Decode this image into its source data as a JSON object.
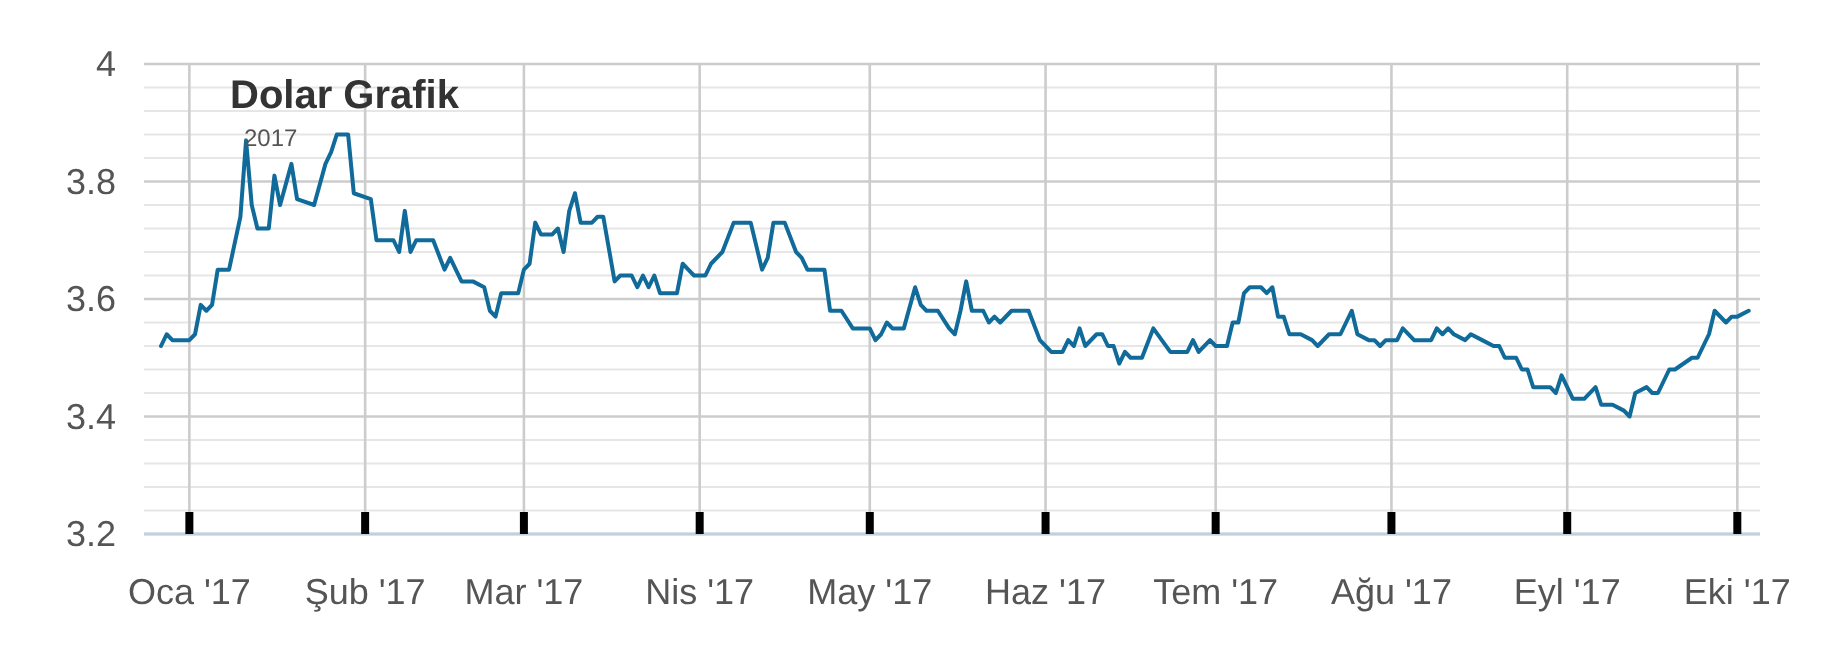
{
  "chart_data": {
    "type": "line",
    "title": "Dolar Grafik",
    "subtitle": "2017",
    "xlim": [
      "2016-12-24",
      "2017-10-05"
    ],
    "xticks": [
      {
        "value": "2017-01-01",
        "label": "Oca '17"
      },
      {
        "value": "2017-02-01",
        "label": "Şub '17"
      },
      {
        "value": "2017-03-01",
        "label": "Mar '17"
      },
      {
        "value": "2017-04-01",
        "label": "Nis '17"
      },
      {
        "value": "2017-05-01",
        "label": "May '17"
      },
      {
        "value": "2017-06-01",
        "label": "Haz '17"
      },
      {
        "value": "2017-07-01",
        "label": "Tem '17"
      },
      {
        "value": "2017-08-01",
        "label": "Ağu '17"
      },
      {
        "value": "2017-09-01",
        "label": "Eyl '17"
      },
      {
        "value": "2017-10-01",
        "label": "Eki '17"
      }
    ],
    "ylim": [
      3.2,
      4
    ],
    "yticks": [
      {
        "value": 3.2,
        "label": "3.2"
      },
      {
        "value": 3.24,
        "label": null
      },
      {
        "value": 3.28,
        "label": null
      },
      {
        "value": 3.32,
        "label": null
      },
      {
        "value": 3.36,
        "label": null
      },
      {
        "value": 3.4,
        "label": "3.4"
      },
      {
        "value": 3.44,
        "label": null
      },
      {
        "value": 3.48,
        "label": null
      },
      {
        "value": 3.52,
        "label": null
      },
      {
        "value": 3.56,
        "label": null
      },
      {
        "value": 3.6,
        "label": "3.6"
      },
      {
        "value": 3.64,
        "label": null
      },
      {
        "value": 3.68,
        "label": null
      },
      {
        "value": 3.72,
        "label": null
      },
      {
        "value": 3.76,
        "label": null
      },
      {
        "value": 3.8,
        "label": "3.8"
      },
      {
        "value": 3.84,
        "label": null
      },
      {
        "value": 3.88,
        "label": null
      },
      {
        "value": 3.92,
        "label": null
      },
      {
        "value": 3.96,
        "label": null
      },
      {
        "value": 4,
        "label": "4"
      }
    ],
    "grid": true,
    "marker": "none",
    "line_style": "solid",
    "x": [
      "2016-12-27",
      "2016-12-28",
      "2016-12-29",
      "2017-01-01",
      "2017-01-02",
      "2017-01-03",
      "2017-01-04",
      "2017-01-05",
      "2017-01-06",
      "2017-01-08",
      "2017-01-10",
      "2017-01-11",
      "2017-01-12",
      "2017-01-13",
      "2017-01-15",
      "2017-01-16",
      "2017-01-17",
      "2017-01-19",
      "2017-01-20",
      "2017-01-23",
      "2017-01-25",
      "2017-01-26",
      "2017-01-27",
      "2017-01-29",
      "2017-01-30",
      "2017-02-02",
      "2017-02-03",
      "2017-02-06",
      "2017-02-07",
      "2017-02-08",
      "2017-02-09",
      "2017-02-10",
      "2017-02-13",
      "2017-02-15",
      "2017-02-16",
      "2017-02-18",
      "2017-02-20",
      "2017-02-22",
      "2017-02-23",
      "2017-02-24",
      "2017-02-25",
      "2017-02-28",
      "2017-03-01",
      "2017-03-02",
      "2017-03-03",
      "2017-03-04",
      "2017-03-06",
      "2017-03-07",
      "2017-03-08",
      "2017-03-09",
      "2017-03-10",
      "2017-03-11",
      "2017-03-13",
      "2017-03-14",
      "2017-03-15",
      "2017-03-17",
      "2017-03-18",
      "2017-03-20",
      "2017-03-21",
      "2017-03-22",
      "2017-03-23",
      "2017-03-24",
      "2017-03-25",
      "2017-03-28",
      "2017-03-29",
      "2017-03-30",
      "2017-03-31",
      "2017-04-02",
      "2017-04-03",
      "2017-04-05",
      "2017-04-07",
      "2017-04-10",
      "2017-04-11",
      "2017-04-12",
      "2017-04-13",
      "2017-04-14",
      "2017-04-16",
      "2017-04-18",
      "2017-04-19",
      "2017-04-20",
      "2017-04-23",
      "2017-04-24",
      "2017-04-25",
      "2017-04-26",
      "2017-04-28",
      "2017-05-01",
      "2017-05-02",
      "2017-05-03",
      "2017-05-04",
      "2017-05-05",
      "2017-05-07",
      "2017-05-09",
      "2017-05-10",
      "2017-05-11",
      "2017-05-13",
      "2017-05-15",
      "2017-05-16",
      "2017-05-17",
      "2017-05-18",
      "2017-05-19",
      "2017-05-21",
      "2017-05-22",
      "2017-05-23",
      "2017-05-24",
      "2017-05-26",
      "2017-05-29",
      "2017-05-31",
      "2017-06-01",
      "2017-06-02",
      "2017-06-04",
      "2017-06-05",
      "2017-06-06",
      "2017-06-07",
      "2017-06-08",
      "2017-06-10",
      "2017-06-11",
      "2017-06-12",
      "2017-06-13",
      "2017-06-14",
      "2017-06-15",
      "2017-06-16",
      "2017-06-18",
      "2017-06-20",
      "2017-06-23",
      "2017-06-26",
      "2017-06-27",
      "2017-06-28",
      "2017-06-30",
      "2017-07-01",
      "2017-07-03",
      "2017-07-04",
      "2017-07-05",
      "2017-07-06",
      "2017-07-07",
      "2017-07-09",
      "2017-07-10",
      "2017-07-11",
      "2017-07-12",
      "2017-07-13",
      "2017-07-14",
      "2017-07-16",
      "2017-07-18",
      "2017-07-19",
      "2017-07-21",
      "2017-07-23",
      "2017-07-25",
      "2017-07-26",
      "2017-07-28",
      "2017-07-29",
      "2017-07-30",
      "2017-07-31",
      "2017-08-02",
      "2017-08-03",
      "2017-08-05",
      "2017-08-08",
      "2017-08-09",
      "2017-08-10",
      "2017-08-11",
      "2017-08-12",
      "2017-08-14",
      "2017-08-15",
      "2017-08-17",
      "2017-08-19",
      "2017-08-20",
      "2017-08-21",
      "2017-08-23",
      "2017-08-24",
      "2017-08-25",
      "2017-08-26",
      "2017-08-29",
      "2017-08-30",
      "2017-08-31",
      "2017-09-02",
      "2017-09-04",
      "2017-09-06",
      "2017-09-07",
      "2017-09-09",
      "2017-09-11",
      "2017-09-12",
      "2017-09-13",
      "2017-09-15",
      "2017-09-16",
      "2017-09-17",
      "2017-09-19",
      "2017-09-20",
      "2017-09-23",
      "2017-09-24",
      "2017-09-26",
      "2017-09-27",
      "2017-09-29",
      "2017-09-30",
      "2017-10-01",
      "2017-10-03"
    ],
    "series": [
      {
        "color": "#106b9a",
        "values": [
          3.52,
          3.54,
          3.53,
          3.53,
          3.54,
          3.59,
          3.58,
          3.59,
          3.65,
          3.65,
          3.74,
          3.87,
          3.76,
          3.72,
          3.72,
          3.81,
          3.76,
          3.83,
          3.77,
          3.76,
          3.83,
          3.85,
          3.88,
          3.88,
          3.78,
          3.77,
          3.7,
          3.7,
          3.68,
          3.75,
          3.68,
          3.7,
          3.7,
          3.65,
          3.67,
          3.63,
          3.63,
          3.62,
          3.58,
          3.57,
          3.61,
          3.61,
          3.65,
          3.66,
          3.73,
          3.71,
          3.71,
          3.72,
          3.68,
          3.75,
          3.78,
          3.73,
          3.73,
          3.74,
          3.74,
          3.63,
          3.64,
          3.64,
          3.62,
          3.64,
          3.62,
          3.64,
          3.61,
          3.61,
          3.66,
          3.65,
          3.64,
          3.64,
          3.66,
          3.68,
          3.73,
          3.73,
          3.69,
          3.65,
          3.67,
          3.73,
          3.73,
          3.68,
          3.67,
          3.65,
          3.65,
          3.58,
          3.58,
          3.58,
          3.55,
          3.55,
          3.53,
          3.54,
          3.56,
          3.55,
          3.55,
          3.62,
          3.59,
          3.58,
          3.58,
          3.55,
          3.54,
          3.58,
          3.63,
          3.58,
          3.58,
          3.56,
          3.57,
          3.56,
          3.58,
          3.58,
          3.53,
          3.52,
          3.51,
          3.51,
          3.53,
          3.52,
          3.55,
          3.52,
          3.54,
          3.54,
          3.52,
          3.52,
          3.49,
          3.51,
          3.5,
          3.5,
          3.55,
          3.51,
          3.51,
          3.53,
          3.51,
          3.53,
          3.52,
          3.52,
          3.56,
          3.56,
          3.61,
          3.62,
          3.62,
          3.61,
          3.62,
          3.57,
          3.57,
          3.54,
          3.54,
          3.53,
          3.52,
          3.54,
          3.54,
          3.58,
          3.54,
          3.53,
          3.53,
          3.52,
          3.53,
          3.53,
          3.55,
          3.53,
          3.53,
          3.55,
          3.54,
          3.55,
          3.54,
          3.53,
          3.54,
          3.53,
          3.52,
          3.52,
          3.5,
          3.5,
          3.48,
          3.48,
          3.45,
          3.45,
          3.44,
          3.47,
          3.43,
          3.43,
          3.45,
          3.42,
          3.42,
          3.41,
          3.4,
          3.44,
          3.45,
          3.44,
          3.44,
          3.48,
          3.48,
          3.5,
          3.5,
          3.54,
          3.58,
          3.56,
          3.57,
          3.57,
          3.58
        ]
      }
    ]
  }
}
